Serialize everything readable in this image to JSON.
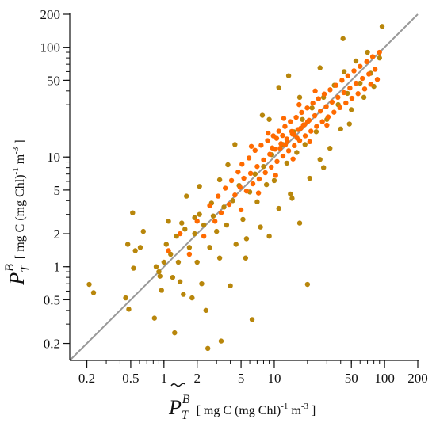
{
  "chart_data": {
    "type": "scatter",
    "x_scale": "log",
    "y_scale": "log",
    "xlim": [
      0.14,
      200
    ],
    "ylim": [
      0.14,
      200
    ],
    "x_ticks": [
      {
        "value": 0.2,
        "label": "0.2"
      },
      {
        "value": 0.5,
        "label": "0.5"
      },
      {
        "value": 1,
        "label": "1"
      },
      {
        "value": 2,
        "label": "2"
      },
      {
        "value": 5,
        "label": "5"
      },
      {
        "value": 10,
        "label": "10"
      },
      {
        "value": 50,
        "label": "50"
      },
      {
        "value": 100,
        "label": "100"
      },
      {
        "value": 200,
        "label": "200"
      }
    ],
    "y_ticks": [
      {
        "value": 0.2,
        "label": "0.2"
      },
      {
        "value": 0.5,
        "label": "0.5"
      },
      {
        "value": 1,
        "label": "1"
      },
      {
        "value": 2,
        "label": "2"
      },
      {
        "value": 5,
        "label": "5"
      },
      {
        "value": 10,
        "label": "10"
      },
      {
        "value": 50,
        "label": "50"
      },
      {
        "value": 100,
        "label": "100"
      },
      {
        "value": 200,
        "label": "200"
      }
    ],
    "xlabel": {
      "main": "P",
      "sub": "T",
      "sup": "B",
      "units_pre": "[ mg C (mg Chl)",
      "units_exp1": "-1",
      "units_mid": " m",
      "units_exp2": "-3",
      "units_post": "]"
    },
    "ylabel": {
      "main": "P",
      "sub": "T",
      "sup": "B",
      "units_pre": "[ mg C (mg Chl)",
      "units_exp1": "-1",
      "units_mid": " m",
      "units_exp2": "-3",
      "units_post": "]"
    },
    "reference_line": {
      "type": "1:1",
      "from": 0.14,
      "to": 200,
      "color": "#999999"
    },
    "marker_colors": {
      "olive": "#B8860B",
      "orange": "#FF6A00"
    },
    "series": [
      {
        "color_key": "olive",
        "points": [
          [
            0.21,
            0.69
          ],
          [
            0.23,
            0.58
          ],
          [
            0.45,
            0.52
          ],
          [
            0.48,
            0.41
          ],
          [
            0.47,
            1.6
          ],
          [
            0.52,
            3.1
          ],
          [
            0.53,
            0.97
          ],
          [
            0.55,
            1.4
          ],
          [
            0.61,
            1.5
          ],
          [
            0.65,
            2.1
          ],
          [
            0.82,
            0.34
          ],
          [
            0.85,
            1.0
          ],
          [
            0.9,
            0.9
          ],
          [
            0.92,
            0.82
          ],
          [
            0.95,
            0.61
          ],
          [
            1.0,
            1.1
          ],
          [
            1.05,
            1.6
          ],
          [
            1.1,
            2.6
          ],
          [
            1.15,
            1.3
          ],
          [
            1.2,
            0.8
          ],
          [
            1.25,
            0.25
          ],
          [
            1.3,
            1.9
          ],
          [
            1.35,
            1.1
          ],
          [
            1.4,
            0.73
          ],
          [
            1.45,
            2.5
          ],
          [
            1.5,
            0.56
          ],
          [
            1.55,
            2.2
          ],
          [
            1.7,
            1.5
          ],
          [
            1.8,
            0.52
          ],
          [
            1.9,
            2.0
          ],
          [
            2.0,
            1.1
          ],
          [
            2.1,
            3.0
          ],
          [
            2.2,
            0.7
          ],
          [
            2.3,
            2.4
          ],
          [
            2.4,
            0.4
          ],
          [
            2.5,
            0.18
          ],
          [
            2.6,
            1.5
          ],
          [
            2.8,
            2.9
          ],
          [
            3.0,
            2.1
          ],
          [
            3.2,
            1.2
          ],
          [
            3.3,
            0.21
          ],
          [
            3.5,
            3.5
          ],
          [
            3.7,
            2.4
          ],
          [
            4.0,
            0.67
          ],
          [
            4.2,
            4.0
          ],
          [
            4.5,
            1.6
          ],
          [
            4.8,
            5.5
          ],
          [
            5.2,
            2.7
          ],
          [
            5.6,
            1.8
          ],
          [
            6.0,
            4.8
          ],
          [
            6.3,
            0.33
          ],
          [
            6.7,
            7.0
          ],
          [
            7.0,
            3.9
          ],
          [
            7.5,
            2.3
          ],
          [
            8.0,
            8.2
          ],
          [
            8.5,
            5.6
          ],
          [
            9.0,
            1.9
          ],
          [
            9.5,
            10.5
          ],
          [
            10.0,
            6.1
          ],
          [
            11.0,
            3.4
          ],
          [
            12.0,
            13.0
          ],
          [
            13.0,
            8.8
          ],
          [
            14.0,
            4.6
          ],
          [
            15.0,
            17.0
          ],
          [
            16.0,
            11.0
          ],
          [
            17.0,
            2.5
          ],
          [
            18.0,
            22.0
          ],
          [
            19.0,
            13.0
          ],
          [
            20.0,
            0.69
          ],
          [
            21.0,
            6.4
          ],
          [
            22.0,
            28.0
          ],
          [
            24.0,
            17.0
          ],
          [
            26.0,
            9.5
          ],
          [
            28.0,
            35.0
          ],
          [
            30.0,
            22.0
          ],
          [
            32.0,
            12.0
          ],
          [
            35.0,
            45.0
          ],
          [
            38.0,
            30.0
          ],
          [
            40.0,
            18.0
          ],
          [
            43.0,
            60.0
          ],
          [
            46.0,
            38.0
          ],
          [
            50.0,
            27.0
          ],
          [
            55.0,
            75.0
          ],
          [
            60.0,
            47.0
          ],
          [
            65.0,
            35.0
          ],
          [
            70.0,
            90.0
          ],
          [
            75.0,
            58.0
          ],
          [
            80.0,
            44.0
          ],
          [
            90.0,
            80.0
          ],
          [
            95.0,
            155.0
          ],
          [
            13.5,
            55.0
          ],
          [
            7.8,
            24.0
          ],
          [
            3.2,
            6.2
          ],
          [
            2.1,
            5.4
          ],
          [
            1.6,
            4.4
          ],
          [
            26.0,
            65.0
          ],
          [
            42.0,
            120.0
          ],
          [
            11.0,
            43.0
          ],
          [
            4.4,
            13.0
          ],
          [
            9.0,
            22.0
          ],
          [
            17.0,
            35.0
          ],
          [
            5.5,
            1.2
          ],
          [
            3.8,
            8.5
          ],
          [
            2.7,
            3.8
          ],
          [
            1.9,
            2.8
          ],
          [
            14.5,
            4.2
          ],
          [
            28.0,
            8.0
          ],
          [
            48.0,
            20.0
          ]
        ]
      },
      {
        "color_key": "orange",
        "points": [
          [
            1.1,
            1.4
          ],
          [
            1.4,
            2.0
          ],
          [
            1.7,
            1.3
          ],
          [
            2.0,
            2.6
          ],
          [
            2.3,
            1.9
          ],
          [
            2.6,
            3.6
          ],
          [
            2.9,
            2.6
          ],
          [
            3.1,
            4.4
          ],
          [
            3.3,
            3.1
          ],
          [
            3.6,
            5.2
          ],
          [
            3.9,
            3.7
          ],
          [
            4.1,
            6.1
          ],
          [
            4.4,
            4.5
          ],
          [
            4.7,
            7.3
          ],
          [
            4.9,
            5.3
          ],
          [
            5.1,
            8.6
          ],
          [
            5.3,
            6.4
          ],
          [
            5.6,
            4.9
          ],
          [
            5.9,
            9.8
          ],
          [
            6.1,
            7.1
          ],
          [
            6.4,
            5.7
          ],
          [
            6.7,
            11.5
          ],
          [
            7.0,
            8.2
          ],
          [
            7.3,
            6.3
          ],
          [
            7.6,
            12.8
          ],
          [
            8.0,
            9.4
          ],
          [
            8.3,
            7.2
          ],
          [
            8.7,
            14.1
          ],
          [
            9.1,
            10.6
          ],
          [
            9.4,
            8.1
          ],
          [
            9.8,
            15.6
          ],
          [
            10.2,
            11.8
          ],
          [
            10.6,
            9.1
          ],
          [
            11.0,
            17.2
          ],
          [
            11.5,
            13.2
          ],
          [
            12.0,
            10.2
          ],
          [
            12.5,
            19.0
          ],
          [
            13.0,
            14.6
          ],
          [
            13.5,
            11.4
          ],
          [
            14.0,
            21.0
          ],
          [
            14.6,
            16.2
          ],
          [
            15.2,
            12.7
          ],
          [
            15.8,
            23.0
          ],
          [
            16.4,
            17.8
          ],
          [
            17.0,
            14.1
          ],
          [
            17.7,
            25.5
          ],
          [
            18.4,
            19.6
          ],
          [
            19.1,
            15.6
          ],
          [
            19.9,
            28.0
          ],
          [
            20.7,
            21.6
          ],
          [
            21.5,
            17.2
          ],
          [
            22.4,
            31.0
          ],
          [
            23.3,
            23.8
          ],
          [
            24.2,
            19.0
          ],
          [
            25.2,
            34.0
          ],
          [
            26.2,
            26.2
          ],
          [
            27.3,
            21.0
          ],
          [
            28.4,
            37.5
          ],
          [
            29.6,
            28.8
          ],
          [
            30.8,
            23.2
          ],
          [
            32.1,
            41.0
          ],
          [
            33.4,
            31.7
          ],
          [
            34.8,
            25.6
          ],
          [
            36.3,
            45.0
          ],
          [
            37.8,
            35.0
          ],
          [
            39.4,
            28.2
          ],
          [
            41.1,
            50.0
          ],
          [
            42.8,
            38.6
          ],
          [
            44.6,
            31.1
          ],
          [
            46.5,
            55.0
          ],
          [
            48.5,
            42.5
          ],
          [
            50.6,
            34.3
          ],
          [
            52.8,
            61.0
          ],
          [
            55.1,
            47.0
          ],
          [
            57.5,
            37.8
          ],
          [
            60.0,
            67.0
          ],
          [
            63.0,
            52.0
          ],
          [
            66.0,
            41.7
          ],
          [
            69.0,
            74.0
          ],
          [
            72.0,
            57.0
          ],
          [
            75.0,
            46.0
          ],
          [
            78.0,
            82.0
          ],
          [
            82.0,
            63.0
          ],
          [
            86.0,
            51.0
          ],
          [
            90.0,
            90.0
          ],
          [
            6.2,
            12.5
          ],
          [
            8.8,
            16.5
          ],
          [
            12.2,
            22.5
          ],
          [
            16.8,
            30.0
          ],
          [
            23.5,
            40.0
          ],
          [
            5.0,
            3.3
          ],
          [
            7.2,
            4.7
          ],
          [
            10.3,
            6.8
          ],
          [
            14.8,
            9.6
          ],
          [
            21.0,
            13.8
          ],
          [
            30.0,
            19.5
          ],
          [
            11.3,
            12.0
          ],
          [
            13.1,
            13.9
          ],
          [
            15.1,
            16.0
          ],
          [
            17.4,
            18.3
          ],
          [
            20.1,
            21.0
          ],
          [
            10.5,
            14.8
          ],
          [
            12.6,
            12.9
          ],
          [
            14.4,
            17.1
          ],
          [
            16.1,
            14.9
          ],
          [
            18.8,
            19.7
          ],
          [
            9.6,
            12.1
          ],
          [
            11.9,
            15.7
          ]
        ]
      }
    ]
  }
}
